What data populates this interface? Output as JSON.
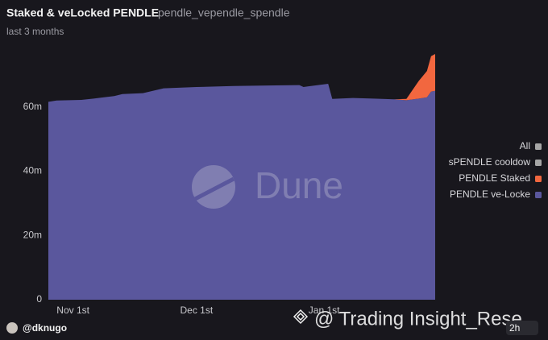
{
  "chart_data": {
    "type": "stacked-area",
    "title": "Staked & veLocked PENDLE",
    "query_name": "pendle_vependle_spendle",
    "subtitle": "last 3 months",
    "x": [
      "Oct 26",
      "Oct 28",
      "Nov 3",
      "Nov 6",
      "Nov 11",
      "Nov 13",
      "Nov 18",
      "Nov 23",
      "Dec 1",
      "Dec 10",
      "Dec 20",
      "Dec 26",
      "Dec 27",
      "Jan 2",
      "Jan 3",
      "Jan 8",
      "Jan 13",
      "Jan 18",
      "Jan 21",
      "Jan 24",
      "Jan 26",
      "Jan 27",
      "Jan 28"
    ],
    "series": [
      {
        "name": "sPENDLE cooldow",
        "color": "#a6a6a6",
        "values": [
          null,
          null,
          null,
          null,
          null,
          null,
          null,
          null,
          null,
          null,
          null,
          null,
          null,
          null,
          null,
          null,
          null,
          null,
          null,
          null,
          null,
          null,
          null
        ]
      },
      {
        "name": "PENDLE Staked",
        "color": "#f2673f",
        "values": [
          null,
          null,
          null,
          null,
          null,
          null,
          null,
          null,
          null,
          null,
          null,
          null,
          null,
          null,
          null,
          null,
          null,
          0,
          0.4,
          5.5,
          8.2,
          11,
          11.5
        ]
      },
      {
        "name": "PENDLE ve-Locke",
        "color": "#5a579d",
        "values": [
          61.6,
          62.0,
          62.2,
          62.6,
          63.4,
          64.0,
          64.3,
          65.8,
          66.2,
          66.5,
          66.7,
          66.8,
          66.2,
          67.2,
          62.5,
          62.8,
          62.6,
          62.4,
          62.1,
          62.6,
          63.0,
          64.8,
          65.0
        ]
      }
    ],
    "legend_toggle": {
      "label": "All",
      "color": "#a6a6a6"
    },
    "legend": "right",
    "xlim": [
      "Oct 26",
      "Jan 28"
    ],
    "xticks": [
      {
        "value": "Nov 1",
        "label": "Nov 1st"
      },
      {
        "value": "Dec 1",
        "label": "Dec 1st"
      },
      {
        "value": "Jan 1",
        "label": "Jan 1st"
      }
    ],
    "ylim": [
      0,
      80
    ],
    "yticks": [
      0,
      {
        "value": 20,
        "label": "20m"
      },
      {
        "value": 40,
        "label": "40m"
      },
      {
        "value": 60,
        "label": "60m"
      }
    ],
    "grid": false
  },
  "watermark": {
    "logo": "Dune",
    "overlay": "@ Trading Insight_Rese"
  },
  "footer": {
    "author": "@dknugo",
    "age": "2h"
  }
}
